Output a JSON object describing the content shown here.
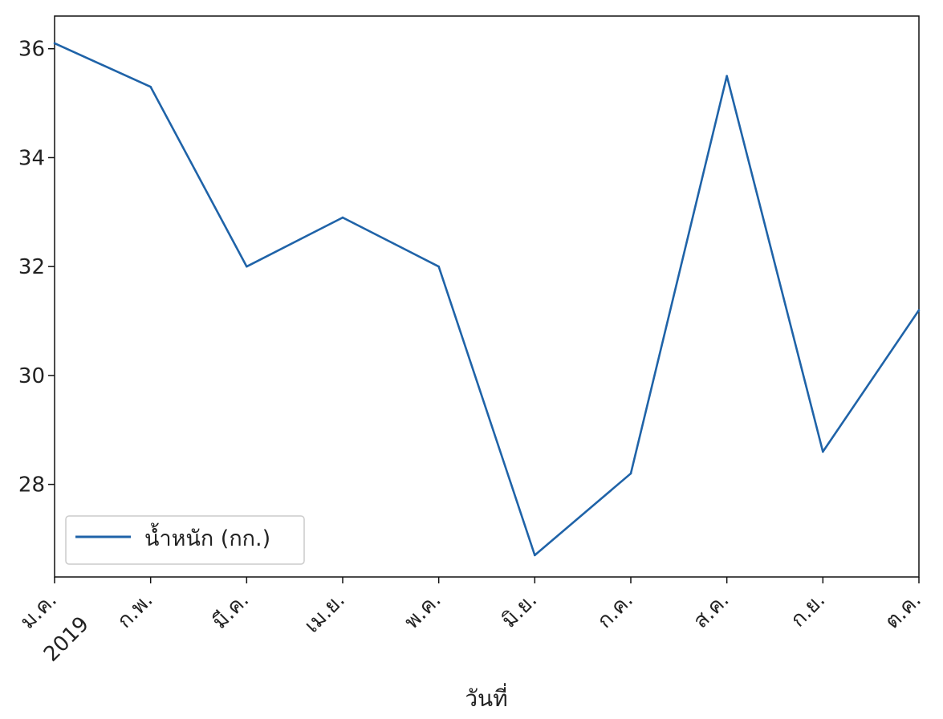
{
  "chart_data": {
    "type": "line",
    "xlabel": "วันที่",
    "ylabel": "",
    "x": [
      "2019-01",
      "2019-02",
      "2019-03",
      "2019-04",
      "2019-05",
      "2019-06",
      "2019-07",
      "2019-08",
      "2019-09",
      "2019-10"
    ],
    "x_tick_labels": [
      "ม.ค.",
      "ก.พ.",
      "มี.ค.",
      "เม.ย.",
      "พ.ค.",
      "มิ.ย.",
      "ก.ค.",
      "ส.ค.",
      "ก.ย.",
      "ต.ค."
    ],
    "x_year_label": "2019",
    "series": [
      {
        "name": "น้ำหนัก (กก.)",
        "values": [
          36.1,
          35.3,
          32.0,
          32.9,
          32.0,
          26.7,
          28.2,
          35.5,
          28.6,
          31.2
        ],
        "color": "#1f63a8"
      }
    ],
    "yticks": [
      28,
      30,
      32,
      34,
      36
    ],
    "ylim": [
      26.3,
      36.6
    ],
    "grid": false,
    "legend": "lower-left"
  }
}
